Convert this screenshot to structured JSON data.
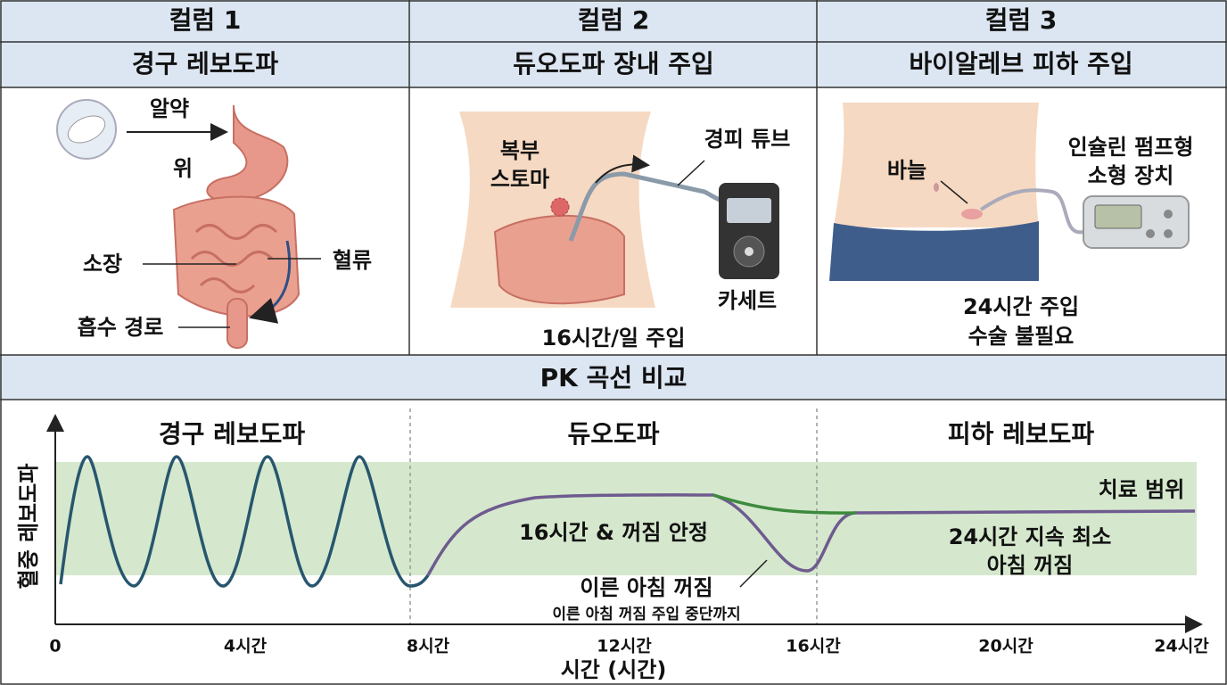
{
  "columns": [
    {
      "header": "컬럼 1",
      "title": "경구 레보도파",
      "labels": {
        "pill": "알약",
        "stomach": "위",
        "intestine": "소장",
        "blood": "혈류",
        "path": "흡수 경로"
      }
    },
    {
      "header": "컬럼 2",
      "title": "듀오도파 장내 주입",
      "labels": {
        "stoma_1": "복부",
        "stoma_2": "스토마",
        "tube": "경피 튜브",
        "cassette": "카세트",
        "note": "16시간/일 주입"
      }
    },
    {
      "header": "컬럼 3",
      "title": "바이알레브 피하 주입",
      "labels": {
        "pump_1": "인슐린 펌프형",
        "pump_2": "소형 장치",
        "needle": "바늘",
        "note_1": "24시간 주입",
        "note_2": "수술 불필요"
      }
    }
  ],
  "pk": {
    "title": "PK 곡선 비교",
    "y_label": "혈중 레보도파",
    "x_label": "시간 (시간)",
    "segments": [
      "경구 레보도파",
      "듀오도파",
      "피하 레보도파"
    ],
    "range_label": "치료 범위",
    "stable": "16시간 & 꺼짐 안정",
    "early_off": "이른 아침 꺼짐",
    "early_off_note": "이른 아침 꺼짐 주입 중단까지",
    "sc_note_1": "24시간 지속 최소",
    "sc_note_2": "아침 꺼짐",
    "x_ticks": [
      "0",
      "4시간",
      "8시간",
      "12시간",
      "16시간",
      "20시간",
      "24시간"
    ]
  }
}
